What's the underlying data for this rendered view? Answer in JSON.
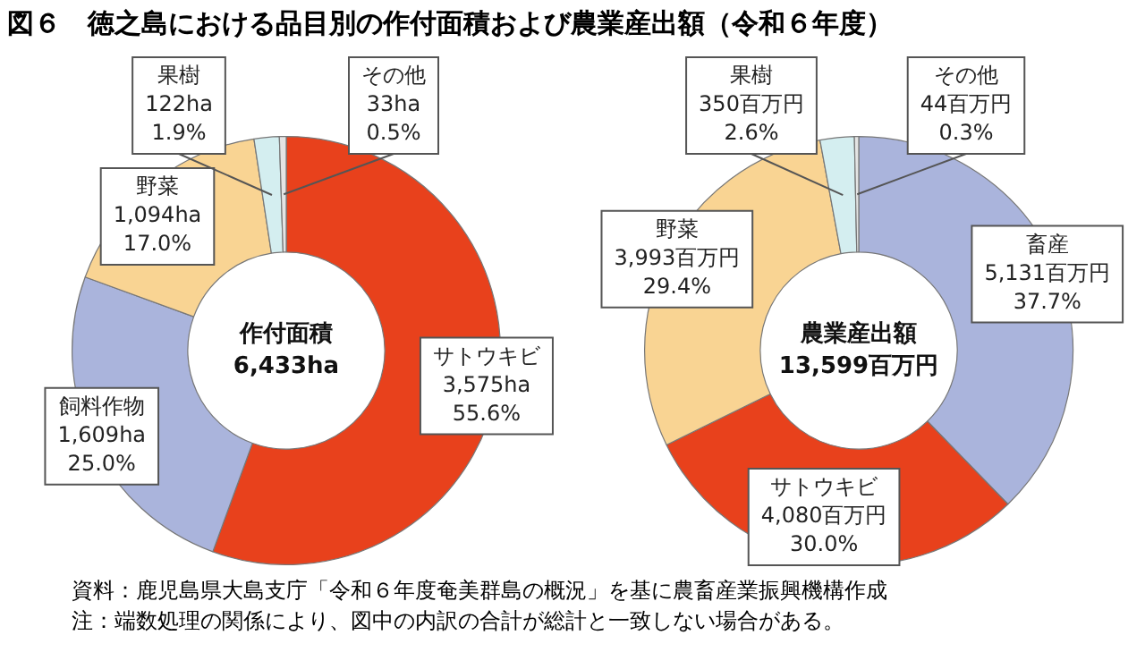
{
  "chart_data": [
    {
      "type": "donut",
      "title": "図６　徳之島における品目別の作付面積および農業産出額（令和６年度）",
      "categories": [
        "サトウキビ",
        "飼料作物",
        "野菜",
        "果樹",
        "その他"
      ],
      "values": [
        3575,
        1609,
        1094,
        122,
        33
      ],
      "value_labels": [
        "3,575ha\n55.6%",
        "1,609ha\n25.0%",
        "1,094ha\n17.0%",
        "122ha\n1.9%",
        "33ha\n0.5%"
      ],
      "colors": [
        "#e8411c",
        "#aab4dc",
        "#f9d493",
        "#d4eef0",
        "#e4e4e4"
      ],
      "annotations": [
        "作付面積\n6,433ha",
        "資料：鹿児島県大島支庁「令和６年度奄美群島の概況」を基に農畜産業振興機構作成",
        "注：端数処理の関係により、図中の内訳の合計が総計と一致しない場合がある。"
      ],
      "legend": false
    },
    {
      "type": "donut",
      "categories": [
        "畜産",
        "サトウキビ",
        "野菜",
        "果樹",
        "その他"
      ],
      "values": [
        5131,
        4080,
        3993,
        350,
        44
      ],
      "value_labels": [
        "5,131百万円\n37.7%",
        "4,080百万円\n30.0%",
        "3,993百万円\n29.4%",
        "350百万円\n2.6%",
        "44百万円\n0.3%"
      ],
      "colors": [
        "#aab4dc",
        "#e8411c",
        "#f9d493",
        "#d4eef0",
        "#e4e4e4"
      ],
      "annotations": [
        "農業産出額\n13,599百万円"
      ],
      "legend": false
    }
  ]
}
